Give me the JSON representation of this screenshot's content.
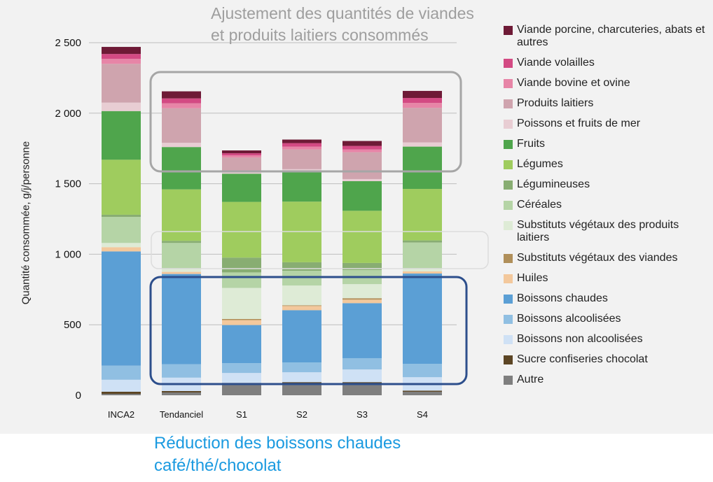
{
  "annotations": {
    "top": "Ajustement des quantités de viandes et produits laitiers consommés",
    "bottom_line1": "Réduction des boissons chaudes",
    "bottom_line2": "café/thé/chocolat"
  },
  "colors": {
    "panel_background": "#f2f2f2",
    "grid": "#bdbdbd",
    "highlight_top": "#a6a6a6",
    "highlight_middle": "#dcdcdc",
    "highlight_bottom": "#2d4f8c",
    "annotation_top_text": "#9e9e9e",
    "annotation_bottom_text": "#1a9ae0"
  },
  "chart_data": {
    "type": "bar",
    "stacked": true,
    "title": "",
    "xlabel": "",
    "ylabel": "Quantité consommée, g/j/personne",
    "ylim": [
      0,
      2500
    ],
    "yticks": [
      0,
      500,
      1000,
      1500,
      2000,
      2500
    ],
    "ytick_labels": [
      "0",
      "500",
      "1 000",
      "1 500",
      "2 000",
      "2 500"
    ],
    "grid": true,
    "legend_position": "right",
    "categories": [
      "INCA2",
      "Tendanciel",
      "S1",
      "S2",
      "S3",
      "S4"
    ],
    "series": [
      {
        "name": "Autre",
        "color": "#7f7f7f",
        "values": [
          10,
          20,
          80,
          85,
          85,
          25
        ]
      },
      {
        "name": "Sucre confiseries chocolat",
        "color": "#5c4524",
        "values": [
          15,
          10,
          8,
          8,
          8,
          8
        ]
      },
      {
        "name": "Boissons non alcoolisées",
        "color": "#cfe1f5",
        "values": [
          85,
          95,
          70,
          70,
          90,
          95
        ]
      },
      {
        "name": "Boissons alcoolisées",
        "color": "#90bfe2",
        "values": [
          100,
          95,
          70,
          70,
          80,
          95
        ]
      },
      {
        "name": "Boissons chaudes",
        "color": "#5b9fd5",
        "values": [
          810,
          640,
          270,
          370,
          390,
          640
        ]
      },
      {
        "name": "Huiles",
        "color": "#f3c89c",
        "values": [
          30,
          15,
          35,
          30,
          25,
          15
        ]
      },
      {
        "name": "Substituts végétaux des viandes",
        "color": "#b08f5a",
        "values": [
          0,
          0,
          8,
          5,
          10,
          0
        ]
      },
      {
        "name": "Substituts végétaux des produits laitiers",
        "color": "#deebd6",
        "values": [
          30,
          20,
          220,
          140,
          100,
          20
        ]
      },
      {
        "name": "Céréales",
        "color": "#b5d4a6",
        "values": [
          185,
          185,
          110,
          105,
          100,
          185
        ]
      },
      {
        "name": "Légumineuses",
        "color": "#88ad72",
        "values": [
          15,
          15,
          105,
          60,
          50,
          15
        ]
      },
      {
        "name": "Légumes",
        "color": "#9fcc5e",
        "values": [
          390,
          365,
          395,
          430,
          370,
          365
        ]
      },
      {
        "name": "Fruits",
        "color": "#4fa54c",
        "values": [
          345,
          300,
          200,
          210,
          210,
          300
        ]
      },
      {
        "name": "Poissons et fruits de mer",
        "color": "#e8cdd3",
        "values": [
          60,
          30,
          20,
          20,
          15,
          30
        ]
      },
      {
        "name": "Produits laitiers",
        "color": "#cfa4ae",
        "values": [
          275,
          245,
          95,
          140,
          190,
          245
        ]
      },
      {
        "name": "Viande bovine et ovine",
        "color": "#e785a7",
        "values": [
          35,
          35,
          15,
          20,
          20,
          35
        ]
      },
      {
        "name": "Viande volailles",
        "color": "#d34a83",
        "values": [
          35,
          35,
          15,
          25,
          25,
          35
        ]
      },
      {
        "name": "Viande porcine, charcuteries, abats et autres",
        "color": "#6e1a36",
        "values": [
          50,
          50,
          20,
          25,
          35,
          50
        ]
      }
    ]
  }
}
